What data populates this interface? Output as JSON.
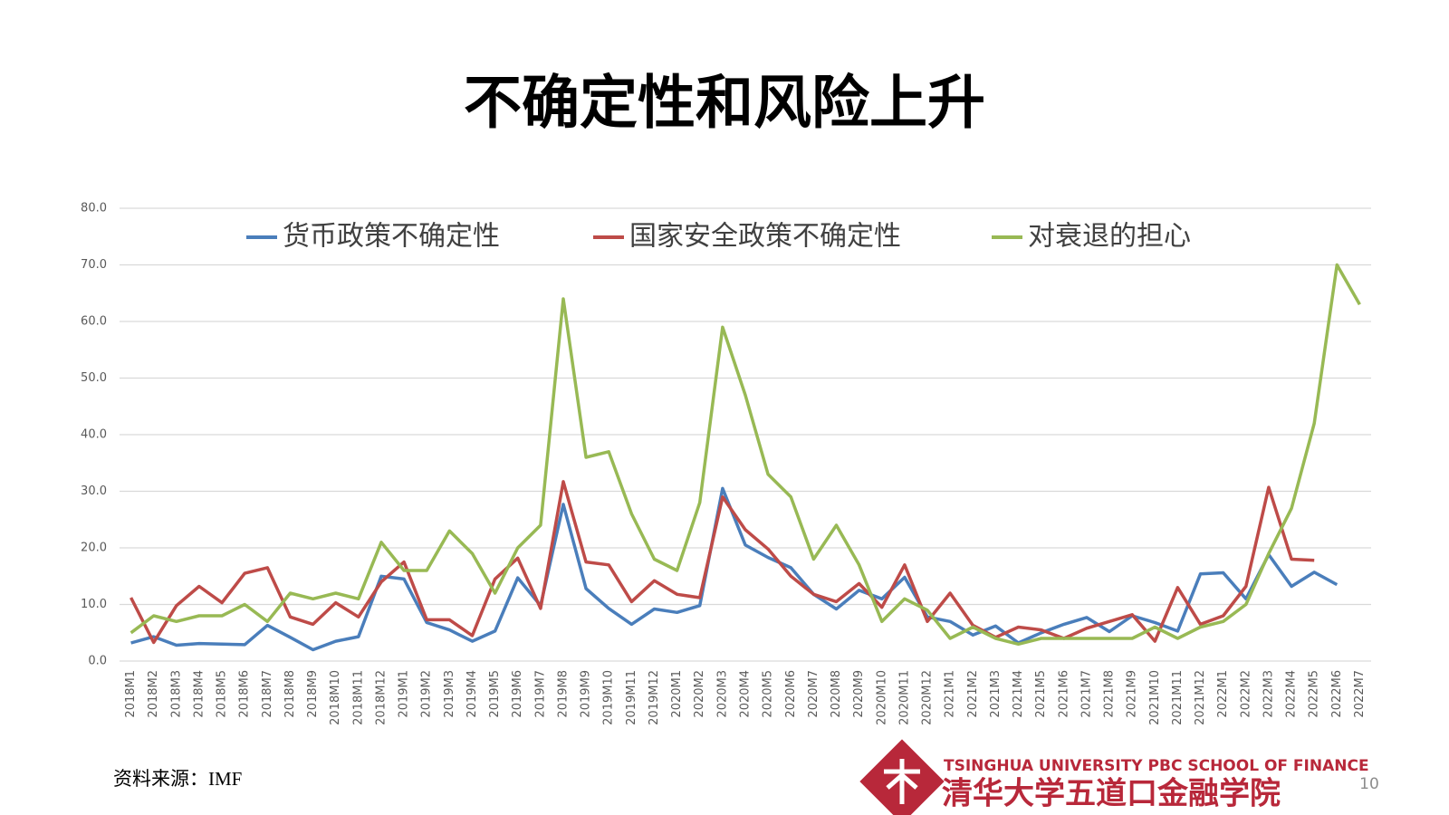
{
  "chart_data": {
    "type": "line",
    "title": "不确定性和风险上升",
    "categories": [
      "2018M1",
      "2018M2",
      "2018M3",
      "2018M4",
      "2018M5",
      "2018M6",
      "2018M7",
      "2018M8",
      "2018M9",
      "2018M10",
      "2018M11",
      "2018M12",
      "2019M1",
      "2019M2",
      "2019M3",
      "2019M4",
      "2019M5",
      "2019M6",
      "2019M7",
      "2019M8",
      "2019M9",
      "2019M10",
      "2019M11",
      "2019M12",
      "2020M1",
      "2020M2",
      "2020M3",
      "2020M4",
      "2020M5",
      "2020M6",
      "2020M7",
      "2020M8",
      "2020M9",
      "2020M10",
      "2020M11",
      "2020M12",
      "2021M1",
      "2021M2",
      "2021M3",
      "2021M4",
      "2021M5",
      "2021M6",
      "2021M7",
      "2021M8",
      "2021M9",
      "2021M10",
      "2021M11",
      "2021M12",
      "2022M1",
      "2022M2",
      "2022M3",
      "2022M4",
      "2022M5",
      "2022M6",
      "2022M7"
    ],
    "series": [
      {
        "name": "货币政策不确定性",
        "color": "#4a7ebb",
        "values": [
          3.2,
          4.3,
          2.8,
          3.1,
          3.0,
          2.9,
          6.3,
          4.2,
          2.0,
          3.5,
          4.3,
          15.0,
          14.5,
          6.8,
          5.5,
          3.5,
          5.3,
          14.7,
          9.8,
          27.7,
          12.8,
          9.3,
          6.5,
          9.2,
          8.6,
          9.8,
          30.5,
          20.5,
          18.3,
          16.5,
          11.8,
          9.2,
          12.5,
          11.0,
          14.8,
          7.8,
          7.0,
          4.6,
          6.2,
          3.2,
          5.0,
          6.5,
          7.7,
          5.2,
          8.0,
          6.8,
          5.3,
          15.4,
          15.6,
          11.0,
          18.8,
          13.2,
          15.7,
          13.5,
          null
        ]
      },
      {
        "name": "国家安全政策不确定性",
        "color": "#be4b48",
        "values": [
          11.2,
          3.3,
          9.8,
          13.2,
          10.3,
          15.5,
          16.5,
          7.8,
          6.5,
          10.3,
          7.8,
          14.0,
          17.5,
          7.3,
          7.3,
          4.5,
          14.5,
          18.2,
          9.3,
          31.7,
          17.5,
          17.0,
          10.5,
          14.2,
          11.8,
          11.2,
          29.0,
          23.2,
          19.8,
          15.0,
          11.8,
          10.5,
          13.7,
          9.5,
          17.0,
          7.0,
          12.0,
          6.3,
          4.2,
          6.0,
          5.5,
          4.0,
          5.8,
          7.0,
          8.2,
          3.5,
          13.0,
          6.5,
          8.0,
          13.2,
          30.7,
          18.0,
          17.8,
          null,
          null
        ]
      },
      {
        "name": "对衰退的担心",
        "color": "#98b954",
        "values": [
          5,
          8,
          7,
          8,
          8,
          10,
          7,
          12,
          11,
          12,
          11,
          21,
          16,
          16,
          23,
          19,
          12,
          20,
          24,
          64,
          36,
          37,
          26,
          18,
          16,
          28,
          59,
          47,
          33,
          29,
          18,
          24,
          17,
          7,
          11,
          9,
          4,
          6,
          4,
          3,
          4,
          4,
          4,
          4,
          4,
          6,
          4,
          6,
          7,
          10,
          19,
          27,
          42,
          70,
          63
        ]
      }
    ],
    "ylim": [
      0,
      80
    ],
    "yticks": [
      {
        "value": 0,
        "label": "0.0"
      },
      {
        "value": 10,
        "label": "10.0"
      },
      {
        "value": 20,
        "label": "20.0"
      },
      {
        "value": 30,
        "label": "30.0"
      },
      {
        "value": 40,
        "label": "40.0"
      },
      {
        "value": 50,
        "label": "50.0"
      },
      {
        "value": 60,
        "label": "60.0"
      },
      {
        "value": 70,
        "label": "70.0"
      },
      {
        "value": 80,
        "label": "80.0"
      }
    ],
    "grid": true,
    "legend": "top"
  },
  "footer": {
    "source": "资料来源：IMF",
    "logo_en": "TSINGHUA UNIVERSITY PBC SCHOOL OF FINANCE",
    "logo_cn": "清华大学五道口金融学院",
    "page_number": "10"
  }
}
